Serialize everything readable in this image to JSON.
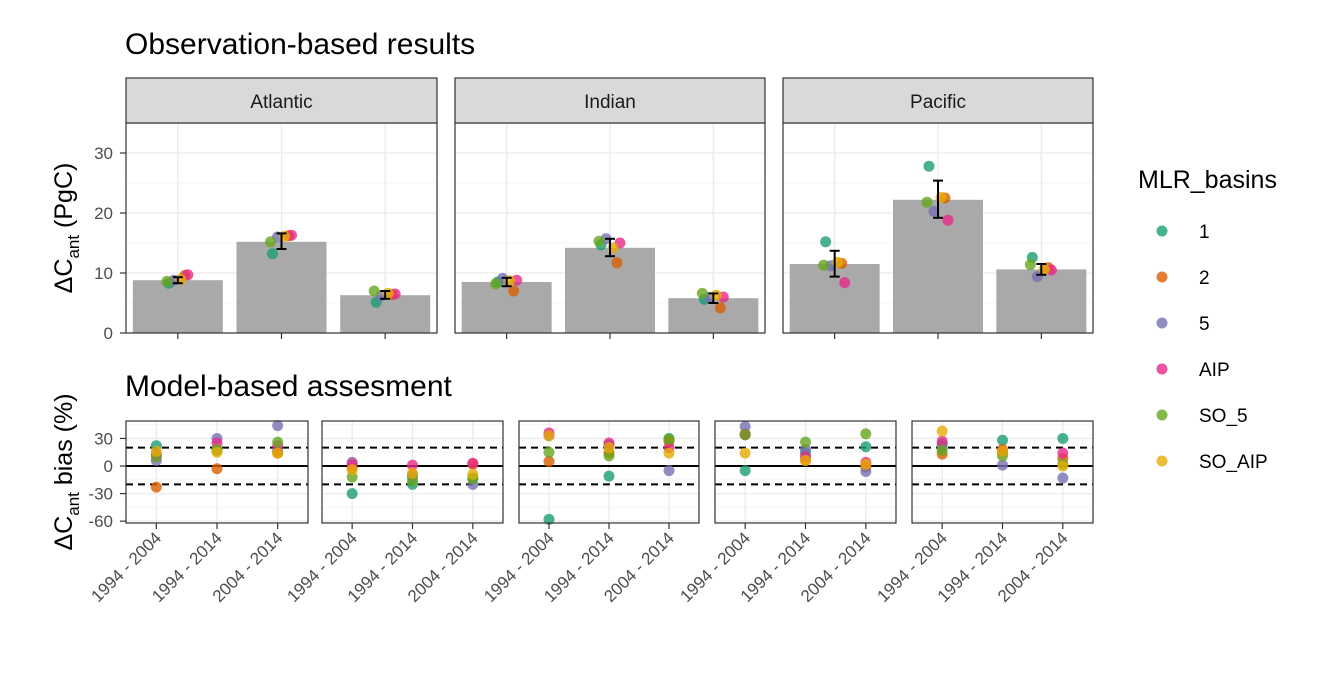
{
  "colors": {
    "panel_border": "#333333",
    "grid_major": "#ebebeb",
    "grid_minor": "#f5f5f5",
    "strip_fill": "#d9d9d9",
    "bar_fill": "#a9a9a9",
    "text": "#000000",
    "tick_text": "#4d4d4d"
  },
  "chart_data": [
    {
      "type": "bar",
      "title": "Observation-based results",
      "ylabel_base": "ΔC",
      "ylabel_sub": "ant",
      "ylabel_rest": " (PgC)",
      "ylim": [
        0,
        35
      ],
      "yticks": [
        0,
        10,
        20,
        30
      ],
      "ytick_labels": [
        "0",
        "10",
        "20",
        "30"
      ],
      "facets": [
        "Atlantic",
        "Indian",
        "Pacific"
      ],
      "categories": [
        "1994 - 2004",
        "1994 - 2014",
        "2004 - 2014"
      ],
      "bars": [
        [
          8.8,
          15.2,
          6.3
        ],
        [
          8.5,
          14.2,
          5.8
        ],
        [
          11.5,
          22.2,
          10.6
        ]
      ],
      "errorbars": [
        [
          [
            8.3,
            9.3
          ],
          [
            14.0,
            16.6
          ],
          [
            5.7,
            7.0
          ]
        ],
        [
          [
            7.8,
            9.2
          ],
          [
            12.8,
            15.7
          ],
          [
            5.0,
            6.6
          ]
        ],
        [
          [
            9.4,
            13.7
          ],
          [
            19.2,
            25.4
          ],
          [
            9.7,
            11.5
          ]
        ]
      ],
      "points": [
        [
          {
            "1": 8.3,
            "2": 9.6,
            "5": 8.8,
            "AIP": 9.7,
            "SO_5": 8.6,
            "SO_AIP": 8.9
          },
          {
            "1": 13.2,
            "2": 16.2,
            "5": 16.0,
            "AIP": 16.3,
            "SO_5": 15.2,
            "SO_AIP": 16.1
          },
          {
            "1": 5.1,
            "2": 6.4,
            "5": 6.2,
            "AIP": 6.5,
            "SO_5": 7.0,
            "SO_AIP": 6.6
          }
        ],
        [
          {
            "1": 8.5,
            "2": 7.0,
            "5": 9.1,
            "AIP": 8.8,
            "SO_5": 8.2,
            "SO_AIP": 8.7
          },
          {
            "1": 14.7,
            "2": 11.7,
            "5": 15.7,
            "AIP": 15.0,
            "SO_5": 15.3,
            "SO_AIP": 14.2
          },
          {
            "1": 5.6,
            "2": 4.2,
            "5": 5.9,
            "AIP": 6.0,
            "SO_5": 6.6,
            "SO_AIP": 6.3
          }
        ],
        [
          {
            "1": 15.2,
            "2": 11.6,
            "5": 11.2,
            "AIP": 8.4,
            "SO_5": 11.3,
            "SO_AIP": 11.8
          },
          {
            "1": 27.8,
            "2": 22.5,
            "5": 20.3,
            "AIP": 18.8,
            "SO_5": 21.8,
            "SO_AIP": 22.6
          },
          {
            "1": 12.6,
            "2": 10.9,
            "5": 9.4,
            "AIP": 10.5,
            "SO_5": 11.4,
            "SO_AIP": 10.6
          }
        ]
      ]
    },
    {
      "type": "scatter",
      "title": "Model-based assesment",
      "ylabel_base": "ΔC",
      "ylabel_sub": "ant",
      "ylabel_rest": " bias (%)",
      "ylim": [
        -62,
        49
      ],
      "yticks": [
        -60,
        -30,
        0,
        30
      ],
      "ytick_labels": [
        "-60",
        "-30",
        "0",
        "30"
      ],
      "reference_lines": {
        "solid": 0,
        "dashed": [
          -20,
          20
        ]
      },
      "categories": [
        "1994 - 2004",
        "1994 - 2014",
        "2004 - 2014"
      ],
      "panels": [
        [
          {
            "1": 22,
            "2": -23,
            "5": 6,
            "AIP": 12,
            "SO_5": 10,
            "SO_AIP": 16
          },
          {
            "1": 17,
            "2": -3,
            "5": 30,
            "AIP": 25,
            "SO_5": 18,
            "SO_AIP": 15
          },
          {
            "1": 16,
            "2": 14,
            "5": 44,
            "AIP": 22,
            "SO_5": 26,
            "SO_AIP": 14
          }
        ],
        [
          {
            "1": -30,
            "2": -2,
            "5": 4,
            "AIP": 2,
            "SO_5": -12,
            "SO_AIP": -4
          },
          {
            "1": -20,
            "2": -10,
            "5": -12,
            "AIP": 1,
            "SO_5": -16,
            "SO_AIP": -8
          },
          {
            "1": -13,
            "2": 2,
            "5": -20,
            "AIP": 3,
            "SO_5": -14,
            "SO_AIP": -9
          }
        ],
        [
          {
            "1": -58,
            "2": 5,
            "5": 33,
            "AIP": 36,
            "SO_5": 15,
            "SO_AIP": 33
          },
          {
            "1": -11,
            "2": 14,
            "5": 23,
            "AIP": 25,
            "SO_5": 11,
            "SO_AIP": 20
          },
          {
            "1": 30,
            "2": 27,
            "5": -5,
            "AIP": 20,
            "SO_5": 29,
            "SO_AIP": 14
          }
        ],
        [
          {
            "1": -5,
            "2": 35,
            "5": 43,
            "AIP": 34,
            "SO_5": 34,
            "SO_AIP": 14
          },
          {
            "1": 14,
            "2": 6,
            "5": 18,
            "AIP": 10,
            "SO_5": 26,
            "SO_AIP": 6
          },
          {
            "1": 21,
            "2": -1,
            "5": -6,
            "AIP": 4,
            "SO_5": 35,
            "SO_AIP": 2
          }
        ],
        [
          {
            "1": 24,
            "2": 13,
            "5": 21,
            "AIP": 27,
            "SO_5": 17,
            "SO_AIP": 38
          },
          {
            "1": 28,
            "2": 18,
            "5": 1,
            "AIP": 15,
            "SO_5": 11,
            "SO_AIP": 16
          },
          {
            "1": 30,
            "2": 8,
            "5": -13,
            "AIP": 14,
            "SO_5": 2,
            "SO_AIP": 0
          }
        ]
      ]
    }
  ],
  "legend": {
    "title": "MLR_basins",
    "placement": "right",
    "items": [
      {
        "label": "1",
        "color": "#1b9e77"
      },
      {
        "label": "2",
        "color": "#d95f02"
      },
      {
        "label": "5",
        "color": "#7570b3"
      },
      {
        "label": "AIP",
        "color": "#e7298a"
      },
      {
        "label": "SO_5",
        "color": "#66a61e"
      },
      {
        "label": "SO_AIP",
        "color": "#e6ab02"
      }
    ]
  }
}
